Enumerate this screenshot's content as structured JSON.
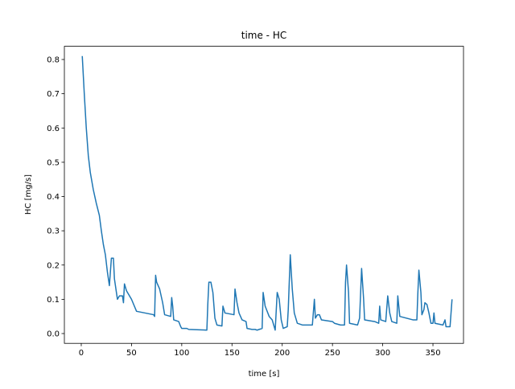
{
  "chart_data": {
    "type": "line",
    "title": "time - HC",
    "x_label": "time [s]",
    "y_label": "HC [mg/s]",
    "x": [
      1,
      3,
      5,
      7,
      9,
      12,
      15,
      18,
      20,
      22,
      24,
      26,
      28,
      30,
      32,
      33,
      35,
      36,
      38,
      41,
      42,
      43,
      45,
      50,
      55,
      72,
      73,
      74,
      75,
      78,
      81,
      83,
      89,
      90,
      91,
      92,
      97,
      99,
      100,
      105,
      107,
      125,
      126,
      127,
      129,
      131,
      133,
      135,
      140,
      141,
      143,
      152,
      153,
      155,
      157,
      160,
      164,
      165,
      170,
      173,
      175,
      180,
      181,
      183,
      187,
      190,
      193,
      195,
      197,
      199,
      201,
      205,
      206,
      208,
      210,
      212,
      215,
      220,
      230,
      232,
      233,
      235,
      237,
      239,
      250,
      252,
      258,
      262,
      263,
      264,
      266,
      267,
      275,
      277,
      279,
      281,
      282,
      292,
      296,
      297,
      298,
      303,
      305,
      307,
      309,
      314,
      315,
      317,
      330,
      334,
      335,
      336,
      338,
      339,
      341,
      342,
      344,
      346,
      348,
      350,
      351,
      352,
      360,
      362,
      363,
      367,
      369
    ],
    "series": [
      {
        "name": "HC",
        "color": "#1f77b4",
        "values": [
          0.81,
          0.7,
          0.6,
          0.52,
          0.47,
          0.42,
          0.38,
          0.345,
          0.3,
          0.26,
          0.23,
          0.18,
          0.14,
          0.22,
          0.22,
          0.16,
          0.12,
          0.1,
          0.11,
          0.11,
          0.09,
          0.145,
          0.125,
          0.1,
          0.065,
          0.055,
          0.05,
          0.17,
          0.15,
          0.13,
          0.09,
          0.055,
          0.05,
          0.105,
          0.08,
          0.04,
          0.035,
          0.02,
          0.015,
          0.015,
          0.012,
          0.01,
          0.09,
          0.15,
          0.15,
          0.12,
          0.045,
          0.025,
          0.022,
          0.08,
          0.06,
          0.055,
          0.13,
          0.09,
          0.06,
          0.04,
          0.035,
          0.015,
          0.012,
          0.012,
          0.01,
          0.015,
          0.12,
          0.08,
          0.05,
          0.04,
          0.01,
          0.12,
          0.1,
          0.04,
          0.015,
          0.02,
          0.07,
          0.23,
          0.13,
          0.06,
          0.03,
          0.025,
          0.025,
          0.1,
          0.045,
          0.055,
          0.055,
          0.04,
          0.035,
          0.03,
          0.025,
          0.025,
          0.15,
          0.2,
          0.12,
          0.03,
          0.025,
          0.045,
          0.19,
          0.1,
          0.04,
          0.035,
          0.03,
          0.08,
          0.04,
          0.035,
          0.11,
          0.06,
          0.035,
          0.03,
          0.11,
          0.05,
          0.04,
          0.04,
          0.12,
          0.185,
          0.12,
          0.055,
          0.07,
          0.09,
          0.085,
          0.06,
          0.03,
          0.03,
          0.06,
          0.03,
          0.025,
          0.04,
          0.02,
          0.02,
          0.1
        ]
      }
    ],
    "xlim": [
      -16.8,
      380.4
    ],
    "xticks": [
      0,
      50,
      100,
      150,
      200,
      250,
      300,
      350
    ],
    "ylim": [
      -0.0286,
      0.8385
    ],
    "yticks": [
      {
        "value": 0,
        "label": "0.0"
      },
      0.1,
      0.2,
      0.3,
      0.4,
      0.5,
      0.6,
      0.7,
      0.8
    ]
  }
}
